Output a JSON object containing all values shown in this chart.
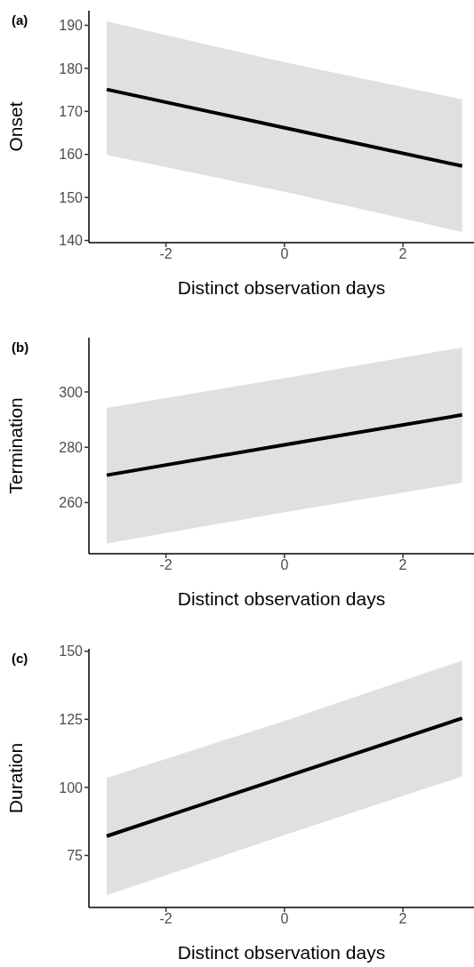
{
  "chart_data": [
    {
      "type": "line",
      "title": "(a)",
      "xlabel": "Distinct observation days",
      "ylabel": "Onset",
      "x": [
        -3,
        0,
        3
      ],
      "xlim": [
        -3.3,
        3.2
      ],
      "xticks": [
        -2,
        0,
        2
      ],
      "ylim": [
        139.5,
        193.4
      ],
      "yticks": [
        140,
        150,
        160,
        170,
        180,
        190
      ],
      "grid": false,
      "marker": "none",
      "line_style": "solid",
      "series": [
        {
          "color": "#000000",
          "values": [
            175.1,
            166.2,
            157.3
          ],
          "lower": [
            159.9,
            151.3,
            142.0
          ],
          "upper": [
            190.9,
            181.4,
            172.8
          ]
        }
      ]
    },
    {
      "type": "line",
      "title": "(b)",
      "xlabel": "Distinct observation days",
      "ylabel": "Termination",
      "x": [
        -3,
        0,
        3
      ],
      "xlim": [
        -3.3,
        3.2
      ],
      "xticks": [
        -2,
        0,
        2
      ],
      "ylim": [
        241.5,
        319.6
      ],
      "yticks": [
        260,
        280,
        300
      ],
      "grid": false,
      "marker": "none",
      "line_style": "solid",
      "series": [
        {
          "color": "#000000",
          "values": [
            269.9,
            280.9,
            291.7
          ],
          "lower": [
            245.2,
            256.5,
            267.2
          ],
          "upper": [
            294.2,
            305.0,
            316.1
          ]
        }
      ]
    },
    {
      "type": "line",
      "title": "(c)",
      "xlabel": "Distinct observation days",
      "ylabel": "Duration",
      "x": [
        -3,
        0,
        3
      ],
      "xlim": [
        -3.3,
        3.2
      ],
      "xticks": [
        -2,
        0,
        2
      ],
      "ylim": [
        55.9,
        150.9
      ],
      "yticks": [
        75,
        100,
        125,
        150
      ],
      "grid": false,
      "marker": "none",
      "line_style": "solid",
      "series": [
        {
          "color": "#000000",
          "values": [
            82.1,
            103.8,
            125.4
          ],
          "lower": [
            60.4,
            82.5,
            104.0
          ],
          "upper": [
            103.5,
            124.4,
            146.6
          ]
        }
      ]
    }
  ]
}
